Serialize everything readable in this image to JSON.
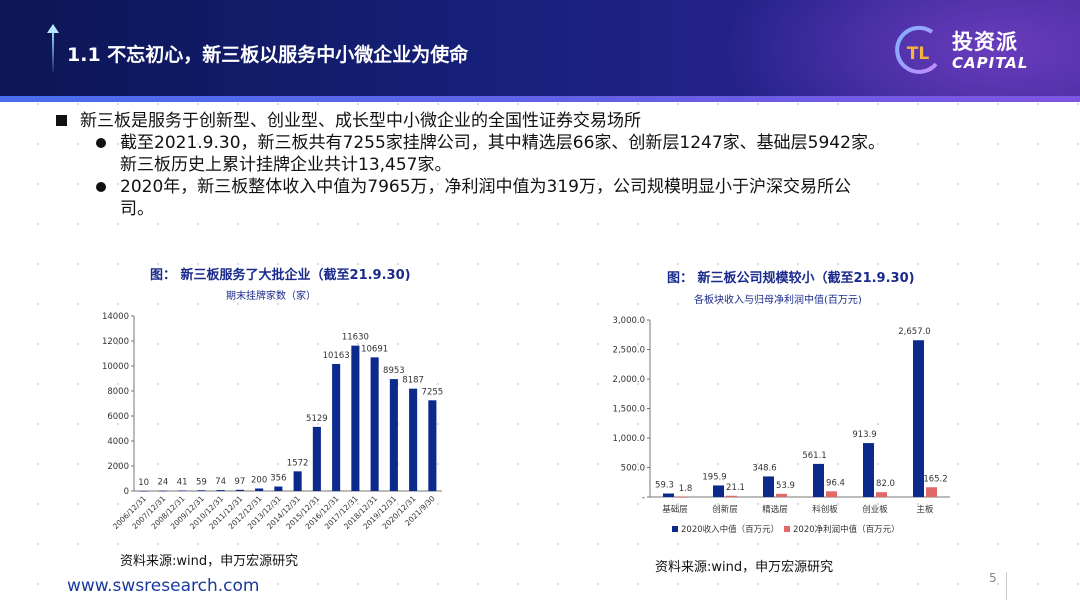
{
  "header": {
    "title": "1.1 不忘初心，新三板以服务中小微企业为使命",
    "logo_cn": "投资派",
    "logo_en": "CAPITAL",
    "logo_mark": "TL"
  },
  "bullets": {
    "main": "新三板是服务于创新型、创业型、成长型中小微企业的全国性证券交易场所",
    "sub": [
      {
        "lines": [
          "截至2021.9.30，新三板共有7255家挂牌公司，其中精选层66家、创新层1247家、基础层5942家。",
          "新三板历史上累计挂牌企业共计13,457家。"
        ]
      },
      {
        "lines": [
          "2020年，新三板整体收入中值为7965万，净利润中值为319万，公司规模明显小于沪深交易所公",
          "司。"
        ]
      }
    ]
  },
  "colors": {
    "navy": "#0b2a8c",
    "salmon": "#e06a6a",
    "title_blue": "#1a2a8c"
  },
  "chart_data": [
    {
      "type": "bar",
      "title": "图： 新三板服务了大批企业（截至21.9.30)",
      "subtitle": "期末挂牌家数（家）",
      "categories": [
        "2006/12/31",
        "2007/12/31",
        "2008/12/31",
        "2009/12/31",
        "2010/12/31",
        "2011/12/31",
        "2012/12/31",
        "2013/12/31",
        "2014/12/31",
        "2015/12/31",
        "2016/12/31",
        "2017/12/31",
        "2018/12/31",
        "2019/12/31",
        "2020/12/31",
        "2021/9/30"
      ],
      "values": [
        10,
        24,
        41,
        59,
        74,
        97,
        200,
        356,
        1572,
        5129,
        10163,
        11630,
        10691,
        8953,
        8187,
        7255
      ],
      "ylim": [
        0,
        14000
      ],
      "yticks": [
        "0",
        "2000",
        "4000",
        "6000",
        "8000",
        "10000",
        "12000",
        "14000"
      ],
      "source": "资料来源:wind，申万宏源研究"
    },
    {
      "type": "bar",
      "title": "图： 新三板公司规模较小（截至21.9.30)",
      "subtitle": "各板块收入与归母净利润中值(百万元)",
      "categories": [
        "基础层",
        "创新层",
        "精选层",
        "科创板",
        "创业板",
        "主板"
      ],
      "series": [
        {
          "name": "2020收入中值（百万元）",
          "values": [
            59.3,
            195.9,
            348.6,
            561.1,
            913.9,
            2657.0
          ],
          "labels": [
            "59.3",
            "195.9",
            "348.6",
            "561.1",
            "913.9",
            "2,657.0"
          ]
        },
        {
          "name": "2020净利润中值（百万元）",
          "values": [
            1.8,
            21.1,
            53.9,
            96.4,
            82.0,
            165.2
          ],
          "labels": [
            "1.8",
            "21.1",
            "53.9",
            "96.4",
            "82.0",
            "165.2"
          ]
        }
      ],
      "ylim": [
        0,
        3000
      ],
      "yticks": [
        "-",
        "500.0",
        "1,000.0",
        "1,500.0",
        "2,000.0",
        "2,500.0",
        "3,000.0"
      ],
      "source": "资料来源:wind，申万宏源研究"
    }
  ],
  "footer": {
    "website": "www.swsresearch.com",
    "page": "5"
  }
}
